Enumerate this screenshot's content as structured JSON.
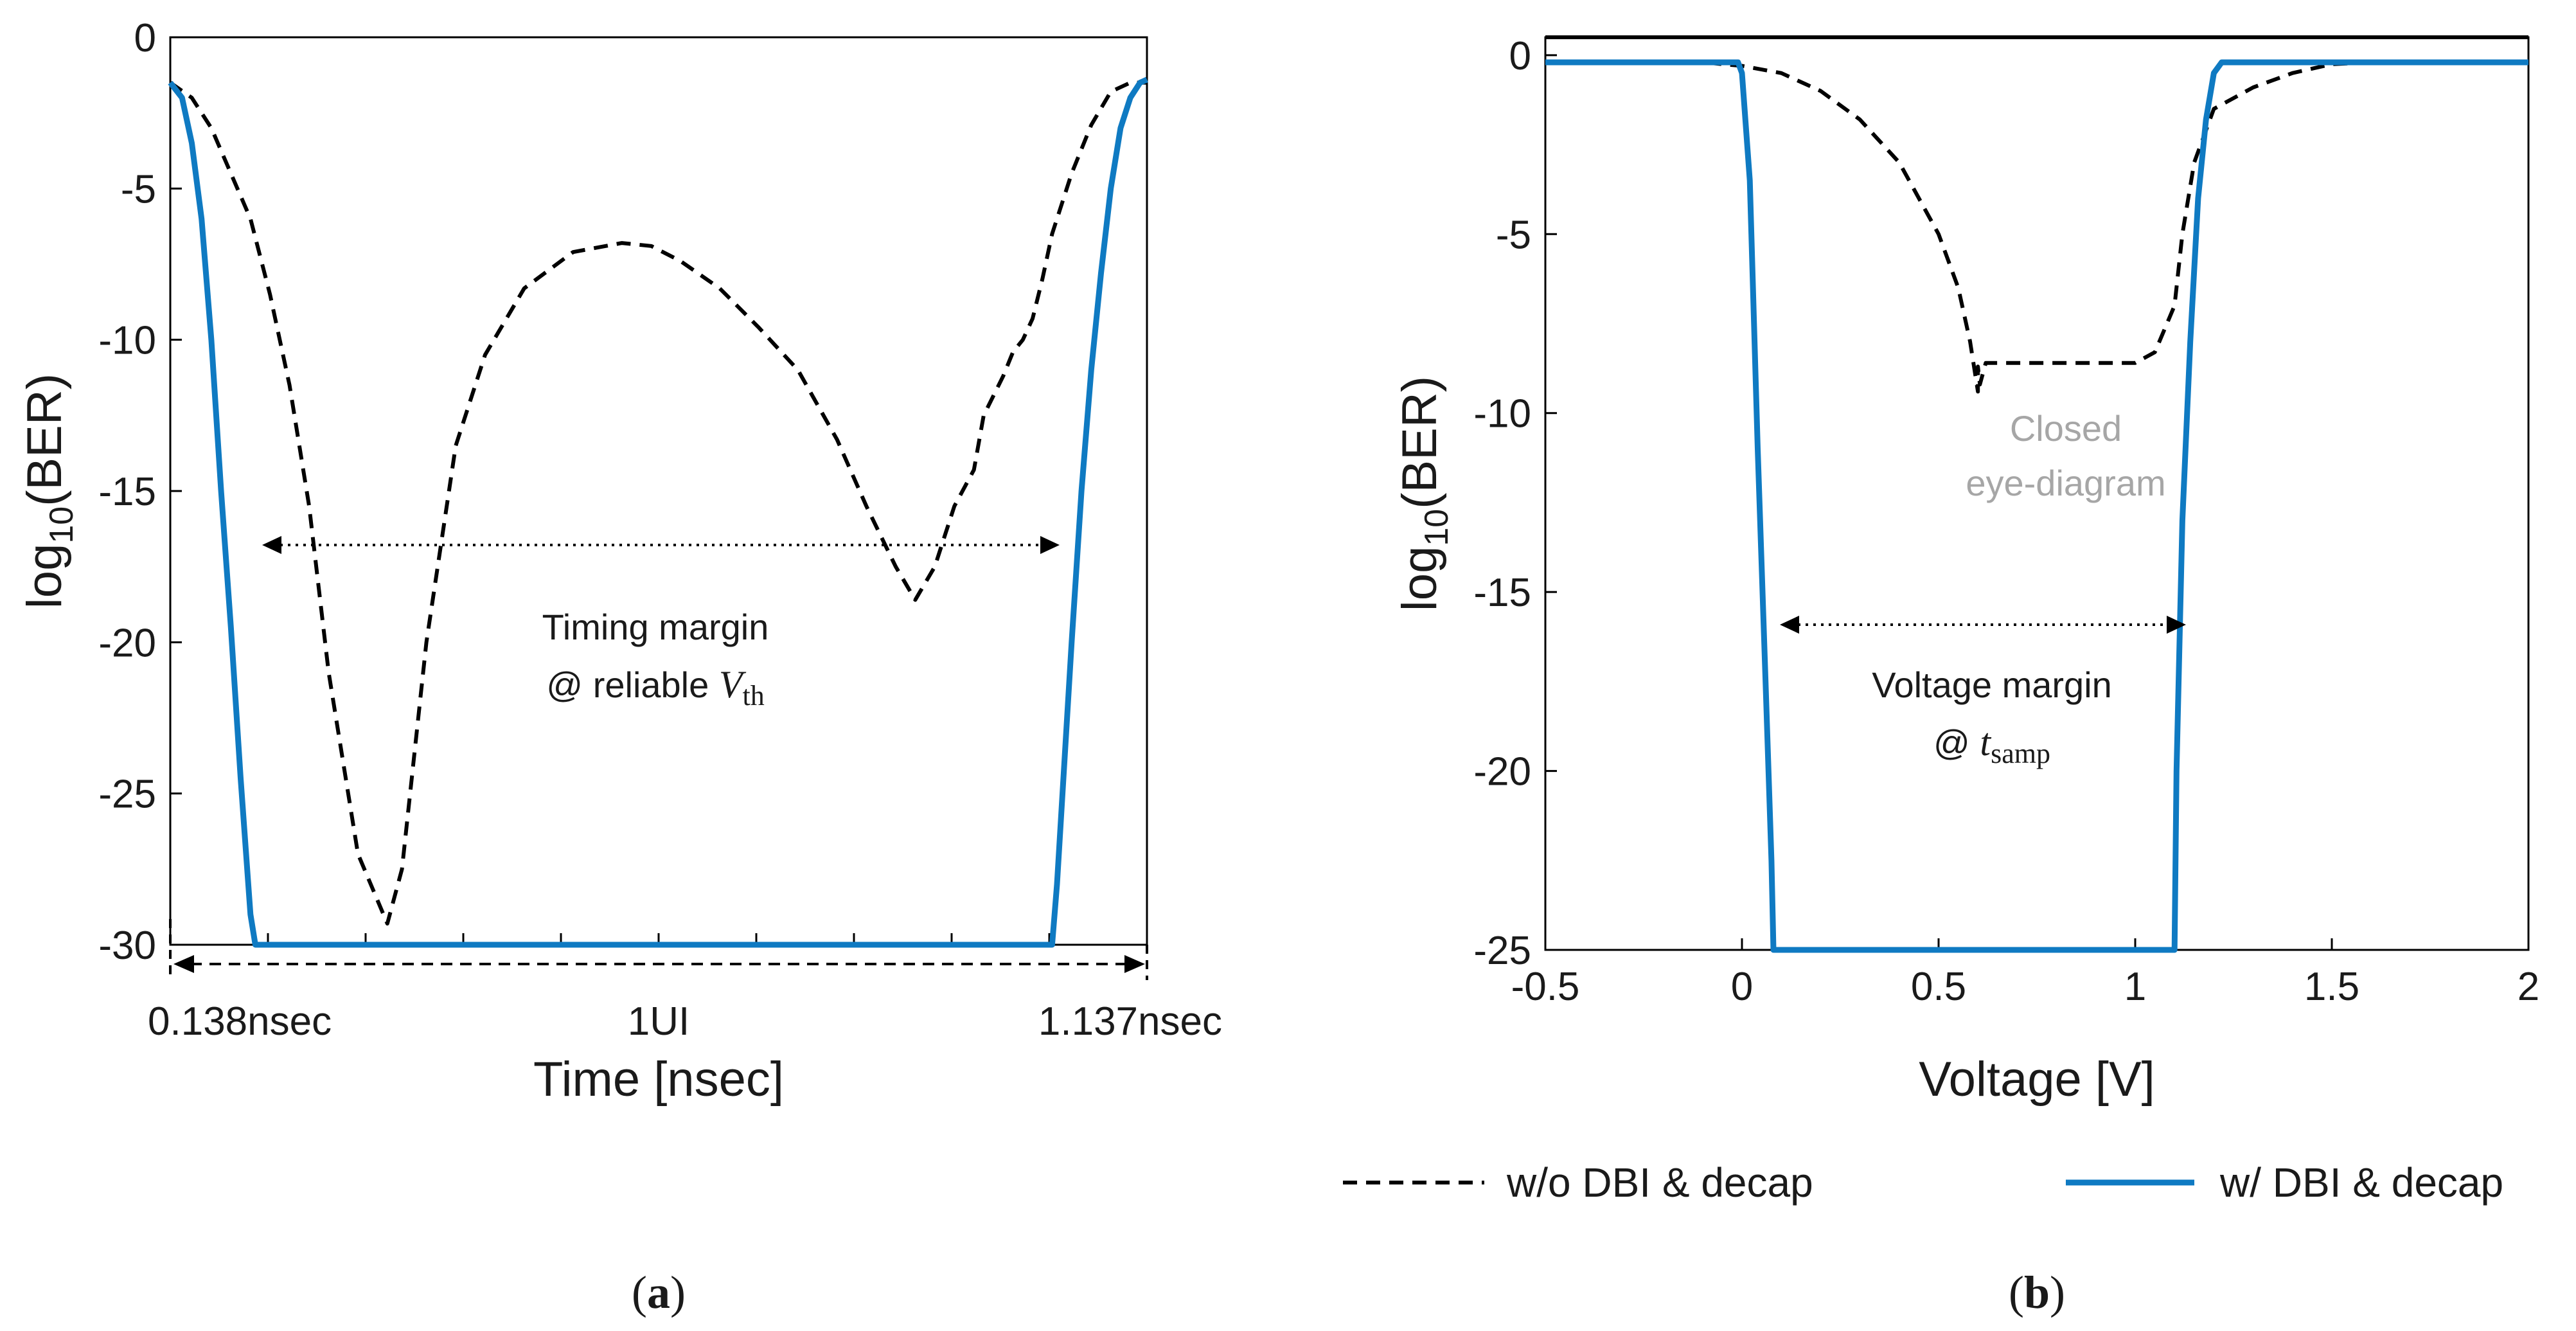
{
  "chart_data": [
    {
      "id": "a",
      "type": "line",
      "caption": "a",
      "xlabel": "Time [nsec]",
      "ylabel_base": "log",
      "ylabel_sub": "10",
      "ylabel_rest": "(BER)",
      "xlim": [
        0.138,
        1.137
      ],
      "ylim": [
        -30,
        0
      ],
      "yticks": [
        0,
        -5,
        -10,
        -15,
        -20,
        -25,
        -30
      ],
      "ytick_labels": [
        "0",
        "-5",
        "-10",
        "-15",
        "-20",
        "-25",
        "-30"
      ],
      "x_markers": [
        "0.138nsec",
        "1UI",
        "1.137nsec"
      ],
      "series": [
        {
          "name": "w/o DBI & decap",
          "style": "dashed",
          "x": [
            0.138,
            0.16,
            0.18,
            0.2,
            0.22,
            0.24,
            0.26,
            0.28,
            0.3,
            0.33,
            0.36,
            0.375,
            0.4,
            0.43,
            0.46,
            0.5,
            0.55,
            0.6,
            0.63,
            0.66,
            0.7,
            0.74,
            0.78,
            0.82,
            0.85,
            0.88,
            0.9,
            0.92,
            0.93,
            0.94,
            0.96,
            0.97,
            0.99,
            1.0,
            1.01,
            1.02,
            1.03,
            1.04,
            1.06,
            1.08,
            1.1,
            1.12,
            1.137
          ],
          "y": [
            -1.5,
            -2.0,
            -3.0,
            -4.5,
            -6.0,
            -8.5,
            -11.5,
            -15.5,
            -21.0,
            -27.0,
            -29.3,
            -27.5,
            -20.0,
            -13.5,
            -10.5,
            -8.3,
            -7.1,
            -6.8,
            -6.9,
            -7.4,
            -8.3,
            -9.6,
            -11.0,
            -13.3,
            -15.5,
            -17.5,
            -18.6,
            -17.5,
            -16.5,
            -15.5,
            -14.3,
            -12.5,
            -11.2,
            -10.4,
            -10.0,
            -9.3,
            -8.0,
            -6.5,
            -4.5,
            -2.9,
            -1.8,
            -1.5,
            -1.5
          ]
        },
        {
          "name": "w/ DBI & decap",
          "style": "solid",
          "x": [
            0.138,
            0.15,
            0.16,
            0.17,
            0.18,
            0.19,
            0.2,
            0.21,
            0.22,
            0.225,
            1.04,
            1.045,
            1.06,
            1.07,
            1.08,
            1.09,
            1.1,
            1.11,
            1.12,
            1.13,
            1.137
          ],
          "y": [
            -1.5,
            -2.0,
            -3.5,
            -6.0,
            -10.0,
            -15.0,
            -19.5,
            -24.5,
            -29.0,
            -30.0,
            -30.0,
            -28.0,
            -20.0,
            -15.0,
            -11.0,
            -7.8,
            -5.0,
            -3.0,
            -2.0,
            -1.5,
            -1.4
          ]
        }
      ],
      "annotations": {
        "margin_line1": "Timing margin",
        "margin_line2_pre": "@ reliable ",
        "margin_var": "V",
        "margin_sub": "th"
      }
    },
    {
      "id": "b",
      "type": "line",
      "caption": "b",
      "xlabel": "Voltage [V]",
      "ylabel_base": "log",
      "ylabel_sub": "10",
      "ylabel_rest": "(BER)",
      "xlim": [
        -0.5,
        2
      ],
      "ylim": [
        -25,
        0.5
      ],
      "xticks": [
        -0.5,
        0,
        0.5,
        1,
        1.5,
        2
      ],
      "xtick_labels": [
        "-0.5",
        "0",
        "0.5",
        "1",
        "1.5",
        "2"
      ],
      "yticks": [
        0,
        -5,
        -10,
        -15,
        -20,
        -25
      ],
      "ytick_labels": [
        "0",
        "-5",
        "-10",
        "-15",
        "-20",
        "-25"
      ],
      "series": [
        {
          "name": "w/o DBI & decap",
          "style": "dashed",
          "x": [
            -0.5,
            -0.1,
            0.0,
            0.1,
            0.2,
            0.3,
            0.4,
            0.5,
            0.55,
            0.58,
            0.6,
            0.6,
            0.605,
            0.62,
            0.8,
            1.0,
            1.05,
            1.1,
            1.12,
            1.15,
            1.2,
            1.3,
            1.4,
            1.5,
            1.6,
            2.0
          ],
          "y": [
            -0.2,
            -0.2,
            -0.3,
            -0.5,
            -1.0,
            -1.8,
            -3.0,
            -5.0,
            -6.5,
            -8.0,
            -9.4,
            -8.7,
            -9.2,
            -8.6,
            -8.6,
            -8.6,
            -8.3,
            -7.0,
            -5.0,
            -3.0,
            -1.5,
            -0.9,
            -0.5,
            -0.25,
            -0.2,
            -0.2
          ]
        },
        {
          "name": "w/ DBI & decap",
          "style": "solid",
          "x": [
            -0.5,
            -0.01,
            0.0,
            0.02,
            0.04,
            0.06,
            0.075,
            0.08,
            1.1,
            1.105,
            1.12,
            1.14,
            1.16,
            1.18,
            1.2,
            1.22,
            2.0
          ],
          "y": [
            -0.2,
            -0.2,
            -0.5,
            -3.5,
            -11.0,
            -17.5,
            -22.5,
            -25.0,
            -25.0,
            -20.0,
            -13.0,
            -8.0,
            -4.0,
            -1.8,
            -0.5,
            -0.2,
            -0.2
          ]
        }
      ],
      "annotations": {
        "closed_line1": "Closed",
        "closed_line2": "eye-diagram",
        "margin_line1": "Voltage margin",
        "margin_line2_pre": "@ ",
        "margin_var": "t",
        "margin_sub": "samp"
      }
    }
  ],
  "legend": {
    "dashed_label": "w/o DBI & decap",
    "solid_label": "w/ DBI & decap"
  },
  "colors": {
    "solid_series": "#0f7ac2",
    "dashed_series": "#000000",
    "annotation_grey": "#a6a6a6"
  }
}
